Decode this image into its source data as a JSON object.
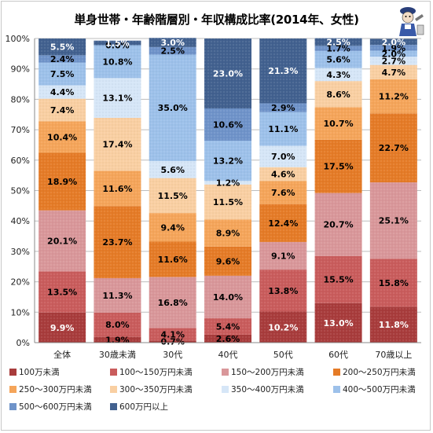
{
  "title": "単身世帯・年齢階層別・年収構成比率(2014年、女性)",
  "chart_data": {
    "type": "bar",
    "stacked": true,
    "categories": [
      "全体",
      "30歳未満",
      "30代",
      "40代",
      "50代",
      "60代",
      "70歳以上"
    ],
    "ylim": [
      0,
      100
    ],
    "yticks": [
      "0%",
      "10%",
      "20%",
      "30%",
      "40%",
      "50%",
      "60%",
      "70%",
      "80%",
      "90%",
      "100%"
    ],
    "grid": true,
    "legend_position": "bottom",
    "series": [
      {
        "name": "100万未満",
        "color": "#a83c3c",
        "values": [
          9.9,
          1.9,
          0.7,
          2.6,
          10.2,
          13.0,
          11.8
        ],
        "labels": [
          "9.9%",
          "1.9%",
          "0.7%",
          "2.6%",
          "10.2%",
          "13.0%",
          "11.8%"
        ]
      },
      {
        "name": "100～150万円未満",
        "color": "#c95c5c",
        "values": [
          13.5,
          8.0,
          4.1,
          5.4,
          13.8,
          15.5,
          15.8
        ],
        "labels": [
          "13.5%",
          "8.0%",
          "4.1%",
          "5.4%",
          "13.8%",
          "15.5%",
          "15.8%"
        ]
      },
      {
        "name": "150～200万円未満",
        "color": "#d9979a",
        "values": [
          20.1,
          11.3,
          16.8,
          14.0,
          9.1,
          20.7,
          25.1
        ],
        "labels": [
          "20.1%",
          "11.3%",
          "16.8%",
          "14.0%",
          "9.1%",
          "20.7%",
          "25.1%"
        ]
      },
      {
        "name": "200～250万円未満",
        "color": "#e57b27",
        "values": [
          18.9,
          23.7,
          11.6,
          9.6,
          12.4,
          17.5,
          22.7
        ],
        "labels": [
          "18.9%",
          "23.7%",
          "11.6%",
          "9.6%",
          "12.4%",
          "17.5%",
          "22.7%"
        ]
      },
      {
        "name": "250～300万円未満",
        "color": "#f5a55a",
        "values": [
          10.4,
          11.6,
          9.4,
          8.9,
          7.6,
          10.7,
          11.2
        ],
        "labels": [
          "10.4%",
          "11.6%",
          "9.4%",
          "8.9%",
          "7.6%",
          "10.7%",
          "11.2%"
        ]
      },
      {
        "name": "300～350万円未満",
        "color": "#f9cfa2",
        "values": [
          7.4,
          17.4,
          11.5,
          11.5,
          4.6,
          8.6,
          4.7
        ],
        "labels": [
          "7.4%",
          "17.4%",
          "11.5%",
          "11.5%",
          "4.6%",
          "8.6%",
          "4.7%"
        ]
      },
      {
        "name": "350～400万円未満",
        "color": "#d6e6f7",
        "values": [
          4.4,
          13.1,
          5.6,
          1.2,
          7.0,
          4.3,
          2.7
        ],
        "labels": [
          "4.4%",
          "13.1%",
          "5.6%",
          "1.2%",
          "7.0%",
          "4.3%",
          "2.7%"
        ]
      },
      {
        "name": "400～500万円未満",
        "color": "#9dc1ea",
        "values": [
          7.5,
          10.8,
          35.0,
          13.2,
          11.1,
          5.6,
          2.0
        ],
        "labels": [
          "7.5%",
          "10.8%",
          "35.0%",
          "13.2%",
          "11.1%",
          "5.6%",
          "2.0%"
        ]
      },
      {
        "name": "500～600万円未満",
        "color": "#6f93c9",
        "values": [
          2.4,
          0.0,
          2.5,
          10.6,
          2.9,
          1.7,
          1.9
        ],
        "labels": [
          "2.4%",
          "0.0%",
          "2.5%",
          "10.6%",
          "2.9%",
          "1.7%",
          "1.9%"
        ]
      },
      {
        "name": "600万円以上",
        "color": "#42618f",
        "values": [
          5.5,
          1.5,
          3.0,
          23.0,
          21.3,
          2.5,
          2.0
        ],
        "labels": [
          "5.5%",
          "1.5%",
          "3.0%",
          "23.0%",
          "21.3%",
          "2.5%",
          "2.0%"
        ]
      }
    ]
  }
}
